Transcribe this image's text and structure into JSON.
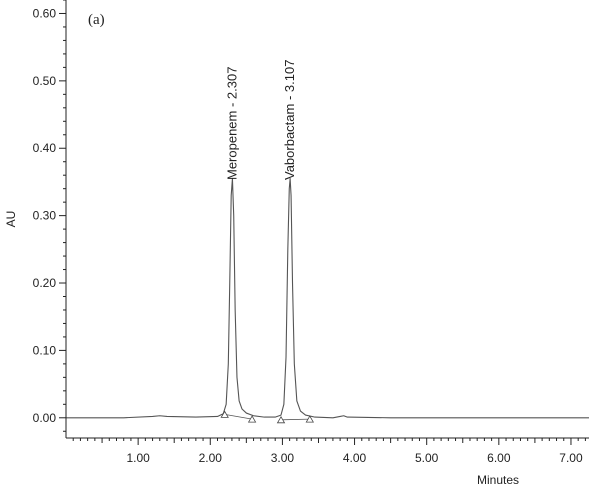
{
  "chart_data": {
    "type": "line",
    "panel_label": "(a)",
    "xlabel": "Minutes",
    "ylabel": "AU",
    "xlim": [
      0.0,
      7.25
    ],
    "ylim": [
      -0.03,
      0.62
    ],
    "x_ticks": [
      1.0,
      2.0,
      3.0,
      4.0,
      5.0,
      6.0,
      7.0
    ],
    "x_tick_labels": [
      "1.00",
      "2.00",
      "3.00",
      "4.00",
      "5.00",
      "6.00",
      "7.00"
    ],
    "y_ticks": [
      0.0,
      0.1,
      0.2,
      0.3,
      0.4,
      0.5,
      0.6
    ],
    "y_tick_labels": [
      "0.00",
      "0.10",
      "0.20",
      "0.30",
      "0.40",
      "0.50",
      "0.60"
    ],
    "grid": false,
    "series": [
      {
        "color": "#555555",
        "x": [
          0.0,
          0.8,
          1.2,
          1.3,
          1.4,
          1.8,
          2.1,
          2.18,
          2.22,
          2.25,
          2.27,
          2.29,
          2.307,
          2.325,
          2.345,
          2.37,
          2.4,
          2.44,
          2.5,
          2.6,
          2.75,
          2.9,
          2.98,
          3.02,
          3.05,
          3.075,
          3.095,
          3.107,
          3.12,
          3.14,
          3.165,
          3.2,
          3.25,
          3.32,
          3.45,
          3.7,
          3.8,
          3.85,
          3.9,
          4.5,
          5.5,
          6.5,
          7.25
        ],
        "y": [
          0.0,
          0.0,
          0.002,
          0.003,
          0.002,
          0.001,
          0.002,
          0.006,
          0.02,
          0.08,
          0.2,
          0.33,
          0.355,
          0.3,
          0.16,
          0.06,
          0.025,
          0.013,
          0.007,
          0.003,
          0.001,
          0.001,
          0.004,
          0.02,
          0.09,
          0.25,
          0.34,
          0.355,
          0.33,
          0.2,
          0.08,
          0.025,
          0.01,
          0.004,
          0.001,
          0.0,
          0.002,
          0.003,
          0.001,
          0.0,
          0.0,
          0.0,
          0.0
        ]
      }
    ],
    "annotations": [
      {
        "text": "Meropenem - 2.307",
        "x": 2.307
      },
      {
        "text": "Vaborbactam - 3.107",
        "x": 3.107
      }
    ],
    "integration_markers": [
      {
        "x": 2.2,
        "y": 0.005
      },
      {
        "x": 2.58,
        "y": -0.002
      },
      {
        "x": 2.98,
        "y": -0.003
      },
      {
        "x": 3.38,
        "y": -0.002
      }
    ],
    "integration_baselines": [
      {
        "x1": 2.2,
        "y1": 0.005,
        "x2": 2.58,
        "y2": -0.002
      },
      {
        "x1": 2.98,
        "y1": -0.003,
        "x2": 3.38,
        "y2": -0.002
      }
    ]
  }
}
